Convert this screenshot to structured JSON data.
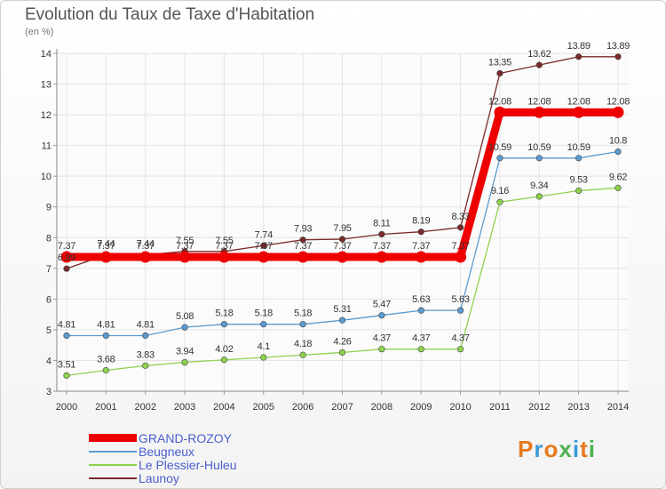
{
  "title": "Evolution du Taux de Taxe d'Habitation",
  "subtitle": "(en %)",
  "logo": {
    "text": "Proxiti",
    "letter_colors": [
      "#e87a1e",
      "#3a9ad9",
      "#e87a1e",
      "#4cb050",
      "#3a9ad9",
      "#e87a1e",
      "#4cb050"
    ]
  },
  "chart_data": {
    "type": "line",
    "x": [
      2000,
      2001,
      2002,
      2003,
      2004,
      2005,
      2006,
      2007,
      2008,
      2009,
      2010,
      2011,
      2012,
      2013,
      2014
    ],
    "ylim": [
      3,
      14
    ],
    "yticks": [
      3,
      4,
      5,
      6,
      7,
      8,
      9,
      10,
      11,
      12,
      13,
      14
    ],
    "grid": true,
    "legend_position": "bottom-left",
    "series": [
      {
        "name": "GRAND-ROZOY",
        "color": "#ee0000",
        "values": [
          7.37,
          7.37,
          7.37,
          7.37,
          7.37,
          7.37,
          7.37,
          7.37,
          7.37,
          7.37,
          7.37,
          12.08,
          12.08,
          12.08,
          12.08
        ],
        "labels": [
          "7.37",
          "7.37",
          "7.37",
          "7.37",
          "7.37",
          "7.37",
          "7.37",
          "7.37",
          "7.37",
          "7.37",
          "7.37",
          "12.08",
          "12.08",
          "12.08",
          "12.08"
        ]
      },
      {
        "name": "Beugneux",
        "color": "#5b9bd0",
        "values": [
          4.81,
          4.81,
          4.81,
          5.08,
          5.18,
          5.18,
          5.18,
          5.31,
          5.47,
          5.63,
          5.63,
          10.59,
          10.59,
          10.59,
          10.8
        ],
        "labels": [
          "4.81",
          "4.81",
          "4.81",
          "5.08",
          "5.18",
          "5.18",
          "5.18",
          "5.31",
          "5.47",
          "5.63",
          "5.63",
          "10.59",
          "10.59",
          "10.59",
          "10.8"
        ]
      },
      {
        "name": "Le Plessier-Huleu",
        "color": "#8ed24e",
        "values": [
          3.51,
          3.68,
          3.83,
          3.94,
          4.02,
          4.1,
          4.18,
          4.26,
          4.37,
          4.37,
          4.37,
          9.16,
          9.34,
          9.53,
          9.62
        ],
        "labels": [
          "3.51",
          "3.68",
          "3.83",
          "3.94",
          "4.02",
          "4.1",
          "4.18",
          "4.26",
          "4.37",
          "4.37",
          "4.37",
          "9.16",
          "9.34",
          "9.53",
          "9.62"
        ]
      },
      {
        "name": "Launoy",
        "color": "#7a2a2a",
        "values": [
          6.99,
          7.44,
          7.44,
          7.55,
          7.55,
          7.74,
          7.93,
          7.95,
          8.11,
          8.19,
          8.33,
          13.35,
          13.62,
          13.89,
          13.89
        ],
        "labels": [
          "6.99",
          "7.44",
          "7.44",
          "7.55",
          "7.55",
          "7.74",
          "7.93",
          "7.95",
          "8.11",
          "8.19",
          "8.33",
          "13.35",
          "13.62",
          "13.89",
          "13.89"
        ]
      }
    ]
  }
}
